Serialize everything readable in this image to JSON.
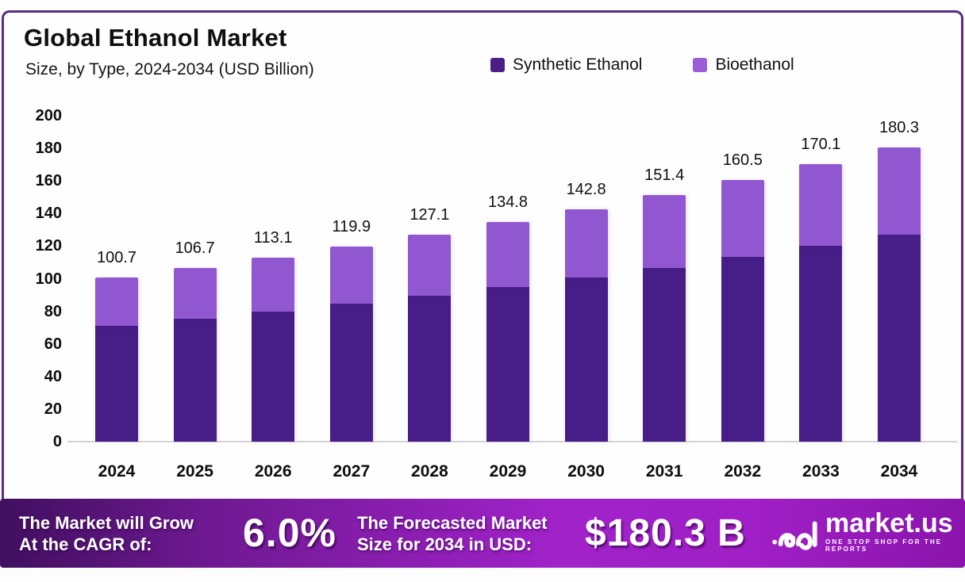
{
  "header": {
    "title": "Global Ethanol Market",
    "subtitle": "Size, by Type, 2024-2034 (USD Billion)"
  },
  "legend": [
    {
      "label": "Synthetic Ethanol",
      "color": "#4a1d87"
    },
    {
      "label": "Bioethanol",
      "color": "#9a5fd6"
    }
  ],
  "colors": {
    "synthetic": "#471d87",
    "bioethanol": "#9157d1",
    "border": "#5b2d83",
    "banner_left": "#400f5e",
    "banner_mid": "#a122c9",
    "banner_right": "#8a14ab"
  },
  "chart_data": {
    "type": "bar",
    "stacked": true,
    "title": "Global Ethanol Market Size, by Type, 2024-2034 (USD Billion)",
    "categories": [
      "2024",
      "2025",
      "2026",
      "2027",
      "2028",
      "2029",
      "2030",
      "2031",
      "2032",
      "2033",
      "2034"
    ],
    "series": [
      {
        "name": "Synthetic Ethanol",
        "color": "#471d87",
        "values": [
          71.0,
          75.3,
          79.8,
          84.6,
          89.7,
          95.1,
          100.8,
          106.8,
          113.2,
          120.0,
          127.2
        ]
      },
      {
        "name": "Bioethanol",
        "color": "#9157d1",
        "values": [
          29.7,
          31.4,
          33.3,
          35.3,
          37.4,
          39.7,
          42.0,
          44.6,
          47.3,
          50.1,
          53.1
        ]
      }
    ],
    "totals": [
      100.7,
      106.7,
      113.1,
      119.9,
      127.1,
      134.8,
      142.8,
      151.4,
      160.5,
      170.1,
      180.3
    ],
    "xlabel": "",
    "ylabel": "",
    "ylim": [
      0,
      200
    ],
    "yticks": [
      0,
      20,
      40,
      60,
      80,
      100,
      120,
      140,
      160,
      180,
      200
    ],
    "grid": false,
    "legend_position": "top"
  },
  "footer": {
    "cagr_label_line1": "The Market will Grow",
    "cagr_label_line2": "At the CAGR of:",
    "cagr_value": "6.0%",
    "forecast_label_line1": "The Forecasted Market",
    "forecast_label_line2": "Size for 2034 in USD:",
    "forecast_value": "$180.3 B",
    "brand": {
      "name": "market.us",
      "tagline": "ONE STOP SHOP FOR THE REPORTS"
    }
  }
}
